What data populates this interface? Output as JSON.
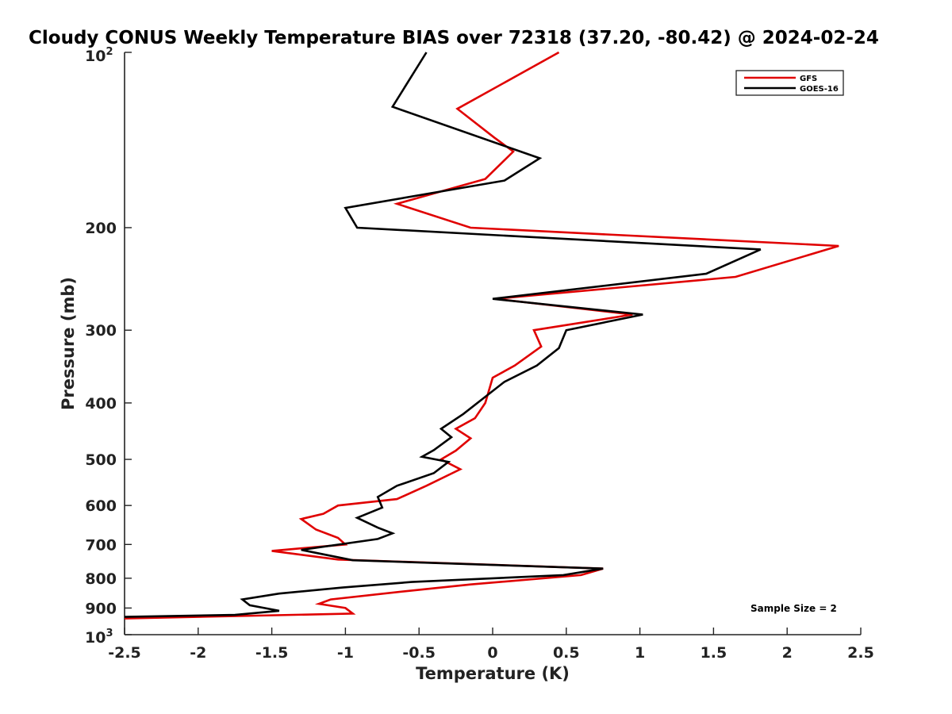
{
  "chart_data": {
    "type": "line",
    "title": "Cloudy CONUS Weekly Temperature BIAS over 72318 (37.20, -80.42) @ 2024-02-24",
    "xlabel": "Temperature (K)",
    "ylabel": "Pressure (mb)",
    "xlim": [
      -2.5,
      2.5
    ],
    "ylim": [
      100,
      1000
    ],
    "yscale": "log",
    "y_reversed": true,
    "x_ticks": [
      -2.5,
      -2,
      -1.5,
      -1,
      -0.5,
      0,
      0.5,
      1,
      1.5,
      2,
      2.5
    ],
    "x_tick_labels": [
      "-2.5",
      "-2",
      "-1.5",
      "-1",
      "-0.5",
      "0",
      "0.5",
      "1",
      "1.5",
      "2",
      "2.5"
    ],
    "y_ticks": [
      200,
      300,
      400,
      500,
      600,
      700,
      800,
      900
    ],
    "y_tick_labels": [
      "200",
      "300",
      "400",
      "500",
      "600",
      "700",
      "800",
      "900"
    ],
    "y_limit_labels": {
      "top_base": "10",
      "top_exp": "2",
      "bottom_base": "10",
      "bottom_exp": "3"
    },
    "legend_position": "top-right",
    "annotation": "Sample Size = 2",
    "series": [
      {
        "name": "GFS",
        "color": "#e00000",
        "points": [
          [
            0.45,
            100
          ],
          [
            -0.24,
            125
          ],
          [
            0.01,
            140
          ],
          [
            0.14,
            148
          ],
          [
            -0.05,
            165
          ],
          [
            -0.65,
            182
          ],
          [
            -0.15,
            200
          ],
          [
            2.35,
            215
          ],
          [
            1.65,
            243
          ],
          [
            0.02,
            265
          ],
          [
            0.95,
            282
          ],
          [
            0.28,
            300
          ],
          [
            0.33,
            320
          ],
          [
            0.15,
            345
          ],
          [
            0.0,
            362
          ],
          [
            -0.05,
            400
          ],
          [
            -0.12,
            425
          ],
          [
            -0.25,
            443
          ],
          [
            -0.15,
            460
          ],
          [
            -0.25,
            483
          ],
          [
            -0.35,
            500
          ],
          [
            -0.22,
            520
          ],
          [
            -0.45,
            555
          ],
          [
            -0.65,
            585
          ],
          [
            -1.05,
            600
          ],
          [
            -1.15,
            620
          ],
          [
            -1.3,
            633
          ],
          [
            -1.2,
            660
          ],
          [
            -1.05,
            682
          ],
          [
            -1.0,
            700
          ],
          [
            -1.5,
            718
          ],
          [
            -1.05,
            743
          ],
          [
            0.75,
            770
          ],
          [
            0.6,
            790
          ],
          [
            -0.15,
            820
          ],
          [
            -0.55,
            840
          ],
          [
            -1.1,
            870
          ],
          [
            -1.18,
            885
          ],
          [
            -1.0,
            900
          ],
          [
            -0.95,
            920
          ],
          [
            -2.5,
            938
          ]
        ]
      },
      {
        "name": "GOES-16",
        "color": "#000000",
        "points": [
          [
            -0.45,
            100
          ],
          [
            -0.68,
            124
          ],
          [
            0.32,
            152
          ],
          [
            0.08,
            166
          ],
          [
            -1.0,
            185
          ],
          [
            -0.92,
            200
          ],
          [
            1.82,
            218
          ],
          [
            1.45,
            240
          ],
          [
            0.0,
            265
          ],
          [
            1.02,
            282
          ],
          [
            0.5,
            300
          ],
          [
            0.45,
            322
          ],
          [
            0.3,
            345
          ],
          [
            0.08,
            368
          ],
          [
            -0.2,
            418
          ],
          [
            -0.35,
            443
          ],
          [
            -0.28,
            458
          ],
          [
            -0.4,
            482
          ],
          [
            -0.48,
            495
          ],
          [
            -0.3,
            505
          ],
          [
            -0.4,
            528
          ],
          [
            -0.65,
            555
          ],
          [
            -0.78,
            580
          ],
          [
            -0.75,
            605
          ],
          [
            -0.92,
            630
          ],
          [
            -0.78,
            655
          ],
          [
            -0.68,
            670
          ],
          [
            -0.78,
            685
          ],
          [
            -1.3,
            715
          ],
          [
            -0.95,
            745
          ],
          [
            0.75,
            770
          ],
          [
            0.48,
            790
          ],
          [
            -0.55,
            812
          ],
          [
            -1.02,
            830
          ],
          [
            -1.45,
            850
          ],
          [
            -1.7,
            870
          ],
          [
            -1.65,
            890
          ],
          [
            -1.45,
            910
          ],
          [
            -1.75,
            925
          ],
          [
            -2.5,
            932
          ]
        ]
      }
    ]
  }
}
